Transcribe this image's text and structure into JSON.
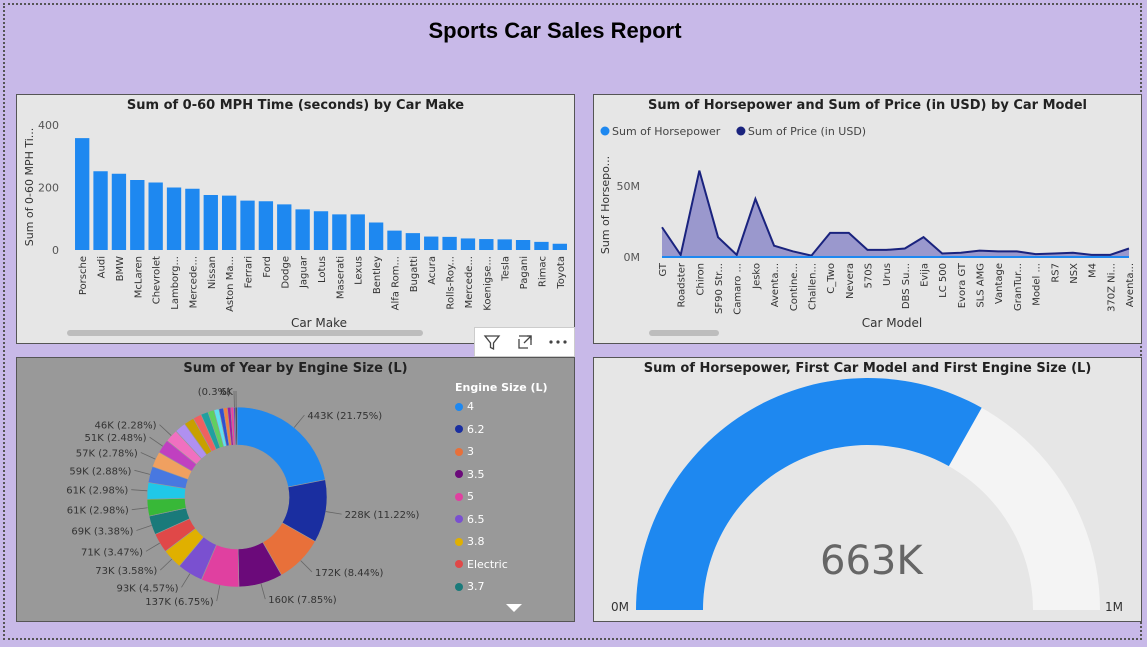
{
  "report": {
    "title": "Sports Car Sales Report"
  },
  "chart_data": [
    {
      "type": "bar",
      "title": "Sum of 0-60 MPH Time (seconds) by Car Make",
      "xlabel": "Car Make",
      "ylabel": "Sum of 0-60 MPH Ti...",
      "ylim": [
        0,
        400
      ],
      "yticks": [
        "400",
        "200",
        "0"
      ],
      "color": "#1e88f0",
      "categories": [
        "Porsche",
        "Audi",
        "BMW",
        "McLaren",
        "Chevrolet",
        "Lamborg...",
        "Mercede...",
        "Nissan",
        "Aston Ma...",
        "Ferrari",
        "Ford",
        "Dodge",
        "Jaguar",
        "Lotus",
        "Maserati",
        "Lexus",
        "Bentley",
        "Alfa Rom...",
        "Bugatti",
        "Acura",
        "Rolls-Roy...",
        "Mercede...",
        "Koenigse...",
        "Tesla",
        "Pagani",
        "Rimac",
        "Toyota"
      ],
      "values": [
        358,
        252,
        244,
        224,
        216,
        200,
        196,
        176,
        174,
        158,
        156,
        146,
        130,
        124,
        114,
        114,
        88,
        62,
        54,
        43,
        42,
        37,
        35,
        34,
        32,
        26,
        20
      ]
    },
    {
      "type": "area",
      "title": "Sum of Horsepower and Sum of Price (in USD) by Car Model",
      "xlabel": "Car Model",
      "ylabel": "Sum of Horsepo...",
      "yticks": [
        "50M",
        "0M"
      ],
      "ylim": [
        0,
        72000000
      ],
      "categories": [
        "GT",
        "Roadster",
        "Chiron",
        "SF90 Str...",
        "Camaro ...",
        "Jesko",
        "Aventa...",
        "Contine...",
        "Challen...",
        "C_Two",
        "Nevera",
        "570S",
        "Urus",
        "DBS Su...",
        "Evija",
        "LC 500",
        "Evora GT",
        "SLS AMG",
        "Vantage",
        "GranTur...",
        "Model ...",
        "RS7",
        "NSX",
        "M4",
        "370Z Ni...",
        "Aventa..."
      ],
      "series": [
        {
          "name": "Sum of Horsepower",
          "color": "#1e88f0",
          "values": [
            1000,
            800,
            1500,
            1000,
            600,
            1600,
            1000,
            700,
            800,
            1200,
            1900,
            600,
            700,
            700,
            2000,
            500,
            400,
            600,
            500,
            500,
            1000,
            600,
            500,
            500,
            300,
            800
          ]
        },
        {
          "name": "Sum of Price (in USD)",
          "color": "#1a237e",
          "values": [
            21000000,
            1500000,
            61000000,
            14000000,
            1500000,
            41000000,
            8000000,
            4000000,
            1000000,
            17000000,
            17000000,
            5000000,
            5000000,
            6000000,
            14000000,
            2500000,
            3000000,
            4500000,
            4000000,
            4000000,
            2000000,
            2500000,
            3000000,
            1500000,
            1500000,
            6000000
          ]
        }
      ]
    },
    {
      "type": "pie",
      "title": "Sum of Year by Engine Size (L)",
      "legend_title": "Engine Size (L)",
      "legend_entries": [
        {
          "label": "4",
          "color": "#1e88f0"
        },
        {
          "label": "6.2",
          "color": "#1a2ea0"
        },
        {
          "label": "3",
          "color": "#e8703a"
        },
        {
          "label": "3.5",
          "color": "#6b0a7a"
        },
        {
          "label": "5",
          "color": "#e040a0"
        },
        {
          "label": "6.5",
          "color": "#7a50d0"
        },
        {
          "label": "3.8",
          "color": "#e0b000"
        },
        {
          "label": "Electric",
          "color": "#e04848"
        },
        {
          "label": "3.7",
          "color": "#1a7a7a"
        }
      ],
      "slices": [
        {
          "label": "443K (21.75%)",
          "value": 21.75,
          "color": "#1e88f0"
        },
        {
          "label": "228K (11.22%)",
          "value": 11.22,
          "color": "#1a2ea0"
        },
        {
          "label": "172K (8.44%)",
          "value": 8.44,
          "color": "#e8703a"
        },
        {
          "label": "160K (7.85%)",
          "value": 7.85,
          "color": "#6b0a7a"
        },
        {
          "label": "137K (6.75%)",
          "value": 6.75,
          "color": "#e040a0"
        },
        {
          "label": "93K (4.57%)",
          "value": 4.57,
          "color": "#7a50d0"
        },
        {
          "label": "73K (3.58%)",
          "value": 3.58,
          "color": "#e0b000"
        },
        {
          "label": "71K (3.47%)",
          "value": 3.47,
          "color": "#e04848"
        },
        {
          "label": "69K (3.38%)",
          "value": 3.38,
          "color": "#1a7a7a"
        },
        {
          "label": "61K (2.98%)",
          "value": 2.98,
          "color": "#38b838"
        },
        {
          "label": "61K (2.98%)",
          "value": 2.98,
          "color": "#20c8e8"
        },
        {
          "label": "59K (2.88%)",
          "value": 2.88,
          "color": "#4878e0"
        },
        {
          "label": "57K (2.78%)",
          "value": 2.78,
          "color": "#f0a060"
        },
        {
          "label": "51K (2.48%)",
          "value": 2.48,
          "color": "#c040c0"
        },
        {
          "label": "46K (2.28%)",
          "value": 2.28,
          "color": "#f070c0"
        },
        {
          "label": "",
          "value": 2.0,
          "color": "#b090f0"
        },
        {
          "label": "",
          "value": 1.8,
          "color": "#c8a000"
        },
        {
          "label": "",
          "value": 1.5,
          "color": "#f06060"
        },
        {
          "label": "",
          "value": 1.3,
          "color": "#20a0a0"
        },
        {
          "label": "",
          "value": 1.1,
          "color": "#60d060"
        },
        {
          "label": "",
          "value": 0.9,
          "color": "#60e0f0"
        },
        {
          "label": "",
          "value": 0.8,
          "color": "#3050d0"
        },
        {
          "label": "",
          "value": 0.7,
          "color": "#f08040"
        },
        {
          "label": "",
          "value": 0.6,
          "color": "#a020a0"
        },
        {
          "label": "",
          "value": 0.5,
          "color": "#f040a0"
        },
        {
          "label": "(0.3%)",
          "value": 0.3,
          "color": "#6040c0"
        },
        {
          "label": "6K",
          "value": 0.3,
          "color": "#333333"
        }
      ]
    },
    {
      "type": "gauge",
      "title": "Sum of Horsepower, First Car Model and First Engine Size (L)",
      "value": 663000,
      "min": 0,
      "max": 1000000,
      "value_label": "663K",
      "min_label": "0M",
      "max_label": "1M",
      "fill_color": "#1e88f0",
      "track_color": "#f4f4f4"
    }
  ]
}
